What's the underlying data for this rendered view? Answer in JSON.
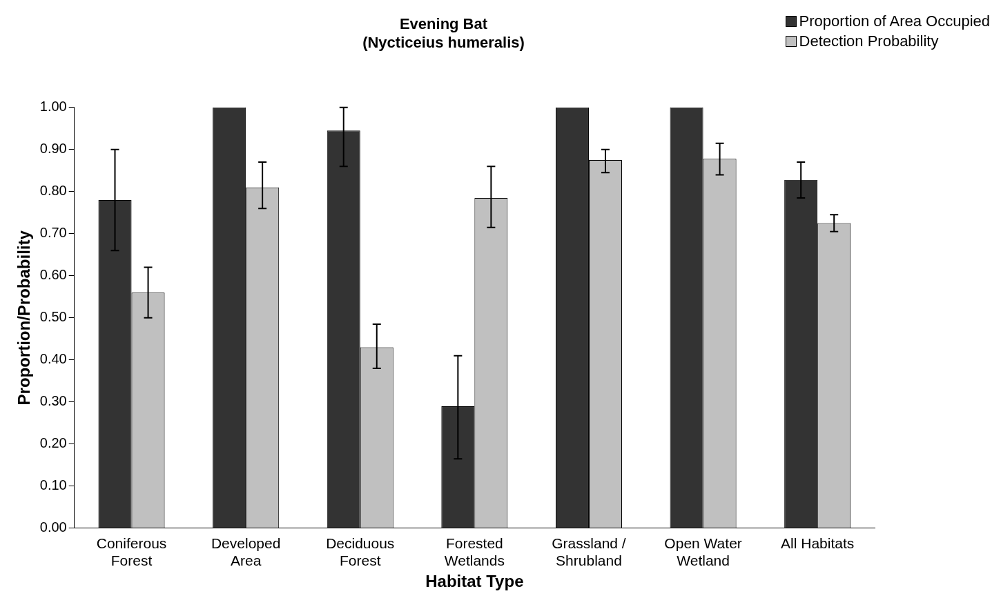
{
  "chart_data": {
    "type": "bar",
    "title": "Evening Bat\n(Nycticeius humeralis)",
    "xlabel": "Habitat Type",
    "ylabel": "Proportion/Probability",
    "categories": [
      "Coniferous\nForest",
      "Developed\nArea",
      "Deciduous\nForest",
      "Forested\nWetlands",
      "Grassland /\nShrubland",
      "Open Water\nWetland",
      "All Habitats"
    ],
    "series": [
      {
        "name": "Proportion of Area Occupied",
        "color": "#333333",
        "values": [
          0.78,
          1.0,
          0.945,
          0.29,
          1.0,
          1.0,
          0.828
        ],
        "errors": [
          [
            0.66,
            0.9
          ],
          null,
          [
            0.86,
            1.0
          ],
          [
            0.165,
            0.41
          ],
          null,
          null,
          [
            0.785,
            0.87
          ]
        ]
      },
      {
        "name": "Detection Probability",
        "color": "#c0c0c0",
        "values": [
          0.56,
          0.81,
          0.43,
          0.785,
          0.875,
          0.878,
          0.725
        ],
        "errors": [
          [
            0.5,
            0.62
          ],
          [
            0.76,
            0.87
          ],
          [
            0.38,
            0.485
          ],
          [
            0.715,
            0.86
          ],
          [
            0.845,
            0.9
          ],
          [
            0.84,
            0.915
          ],
          [
            0.705,
            0.745
          ]
        ]
      }
    ],
    "ylim": [
      0,
      1
    ],
    "yticks": [
      {
        "value": 0,
        "label": "0.00"
      },
      {
        "value": 0.1,
        "label": "0.10"
      },
      {
        "value": 0.2,
        "label": "0.20"
      },
      {
        "value": 0.3,
        "label": "0.30"
      },
      {
        "value": 0.4,
        "label": "0.40"
      },
      {
        "value": 0.5,
        "label": "0.50"
      },
      {
        "value": 0.6,
        "label": "0.60"
      },
      {
        "value": 0.7,
        "label": "0.70"
      },
      {
        "value": 0.8,
        "label": "0.80"
      },
      {
        "value": 0.9,
        "label": "0.90"
      },
      {
        "value": 1,
        "label": "1.00"
      }
    ],
    "grid": false,
    "legend": "top right"
  }
}
